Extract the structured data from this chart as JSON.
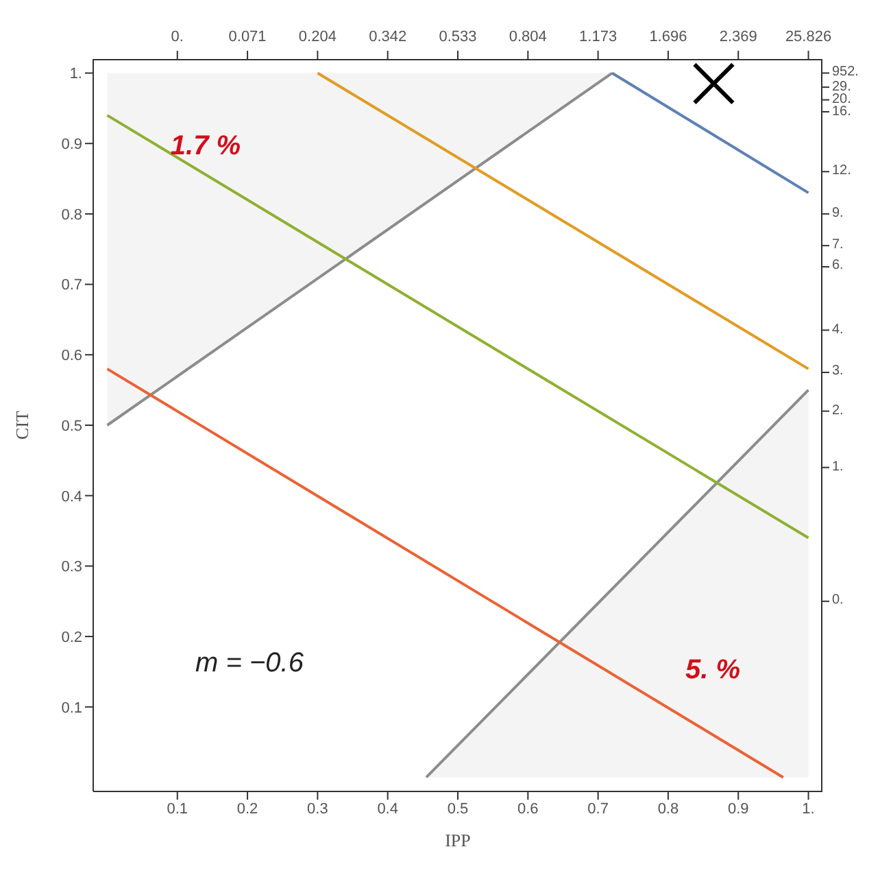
{
  "chart_data": {
    "type": "line",
    "xlabel": "IPP",
    "ylabel": "CIT",
    "xlim": [
      -0.02,
      1.02
    ],
    "ylim": [
      -0.02,
      1.02
    ],
    "xticks": [
      0.1,
      0.2,
      0.3,
      0.4,
      0.5,
      0.6,
      0.7,
      0.8,
      0.9,
      {
        "value": 1,
        "label": "1."
      }
    ],
    "yticks": [
      0.1,
      0.2,
      0.3,
      0.4,
      0.5,
      0.6,
      0.7,
      0.8,
      0.9,
      {
        "value": 1,
        "label": "1."
      }
    ],
    "series": [
      {
        "color": "#8c8c8c",
        "x": [
          0,
          0.72
        ],
        "values": [
          0.5,
          1.0
        ],
        "lower": [
          0.5,
          1.0
        ],
        "upper": [
          1.0,
          1.0
        ]
      },
      {
        "type": "area",
        "color": "#8c8c8c",
        "x": [
          0.455,
          1.0
        ],
        "values": [
          0,
          0.55
        ]
      },
      {
        "color": "#5e81b5",
        "x": [
          0.72,
          1.0
        ],
        "values": [
          1.0,
          0.83
        ]
      },
      {
        "color": "#e19c24",
        "x": [
          0.3,
          1.0
        ],
        "values": [
          1.0,
          0.58
        ]
      },
      {
        "color": "#8fb032",
        "x": [
          0,
          1.0
        ],
        "values": [
          0.94,
          0.34
        ]
      },
      {
        "color": "#eb6235",
        "x": [
          0,
          0.964
        ],
        "values": [
          0.58,
          0
        ]
      },
      {
        "type": "scatter",
        "marker": "cross",
        "color": "#000000",
        "x": [
          0.865
        ],
        "values": [
          0.985
        ]
      }
    ],
    "annotations": [
      "1.7 %",
      "5. %",
      "m = −0.6",
      "0.",
      "0.071",
      "0.204",
      "0.342",
      "0.533",
      "0.804",
      "1.173",
      "1.696",
      "2.369",
      "25.826",
      "952.",
      "29.",
      "20.",
      "16.",
      "12.",
      "9.",
      "7.",
      "6.",
      "4.",
      "3.",
      "2.",
      "1.",
      "0."
    ]
  }
}
